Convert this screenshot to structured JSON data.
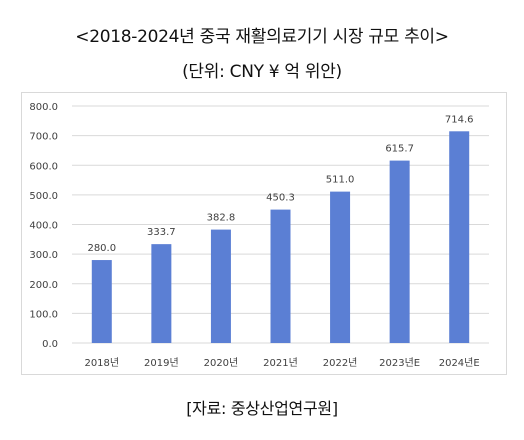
{
  "title": "<2018-2024년 중국 재활의료기기 시장 규모 추이>",
  "subtitle": "(단위: CNY ¥ 억 위안)",
  "source": "[자료: 중상산업연구원]",
  "chart_data": {
    "type": "bar",
    "categories": [
      "2018년",
      "2019년",
      "2020년",
      "2021년",
      "2022년",
      "2023년E",
      "2024년E"
    ],
    "values": [
      280.0,
      333.7,
      382.8,
      450.3,
      511.0,
      615.7,
      714.6
    ],
    "value_labels": [
      "280.0",
      "333.7",
      "382.8",
      "450.3",
      "511.0",
      "615.7",
      "714.6"
    ],
    "y_ticks": [
      "0.0",
      "100.0",
      "200.0",
      "300.0",
      "400.0",
      "500.0",
      "600.0",
      "700.0",
      "800.0"
    ],
    "ylim": [
      0,
      800
    ],
    "grid": true,
    "legend": false,
    "colors": {
      "bar": "#5b7fd4",
      "grid": "#d9d9d9",
      "text": "#404040"
    }
  }
}
